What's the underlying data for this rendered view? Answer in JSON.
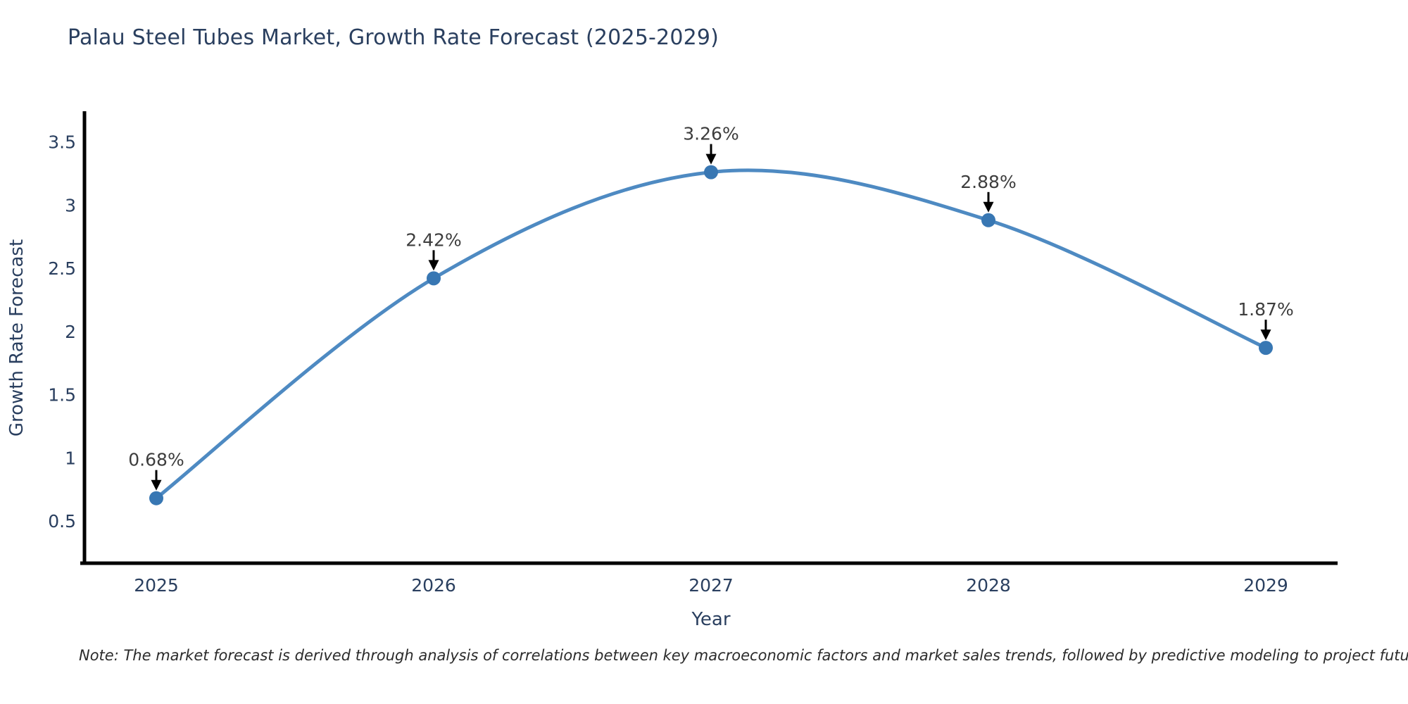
{
  "title": "Palau Steel Tubes Market, Growth Rate Forecast (2025-2029)",
  "note": "Note: The market forecast is derived through analysis of correlations between key macroeconomic factors and market sales trends, followed by predictive modeling to project future sales",
  "chart_data": {
    "type": "line",
    "title": "Palau Steel Tubes Market, Growth Rate Forecast (2025-2029)",
    "xlabel": "Year",
    "ylabel": "Growth Rate Forecast",
    "categories": [
      "2025",
      "2026",
      "2027",
      "2028",
      "2029"
    ],
    "values": [
      0.68,
      2.42,
      3.26,
      2.88,
      1.87
    ],
    "point_labels": [
      "0.68%",
      "2.42%",
      "3.26%",
      "2.88%",
      "1.87%"
    ],
    "ytick_labels": [
      "0.5",
      "1",
      "1.5",
      "2",
      "2.5",
      "3",
      "3.5"
    ],
    "ytick_values": [
      0.5,
      1,
      1.5,
      2,
      2.5,
      3,
      3.5
    ],
    "ylim": [
      0.17,
      3.74
    ],
    "grid": false,
    "legend": "none",
    "line_shape": "spline",
    "marker": "circle",
    "annotation_arrows": true,
    "colors": {
      "line": "#4e8ac2",
      "marker": "#3877b3",
      "axis": "#000000",
      "arrow": "#000000",
      "title_text": "#2a3f5f",
      "tick_text": "#2a3f5f",
      "axis_label_text": "#2a3f5f",
      "annotation_text": "#3d3d3d",
      "note_text": "#2b2b2b"
    }
  }
}
